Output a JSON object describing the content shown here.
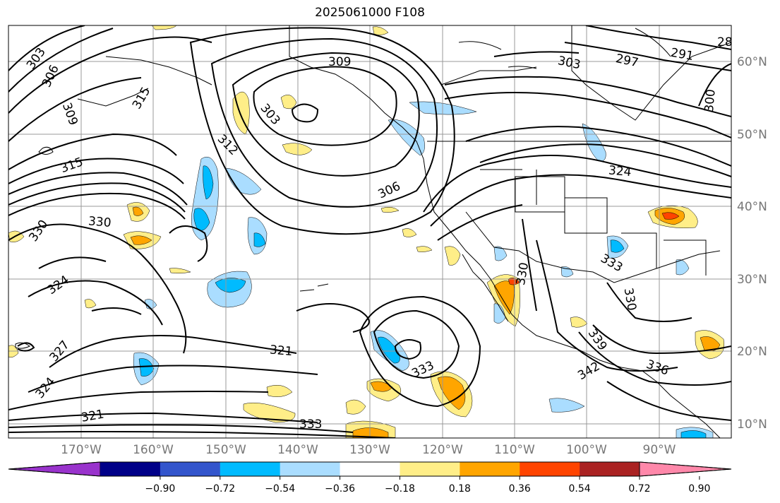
{
  "title": "2025061000 F108",
  "map": {
    "projection": "PlateCarree",
    "extent": {
      "lon": [
        -180,
        -80
      ],
      "lat": [
        8,
        65
      ]
    },
    "lat_labels": [
      "60°N",
      "50°N",
      "40°N",
      "30°N",
      "20°N",
      "10°N"
    ],
    "lon_labels": [
      "170°W",
      "160°W",
      "150°W",
      "140°W",
      "130°W",
      "120°W",
      "110°W",
      "100°W",
      "90°W"
    ],
    "contour_labels": [
      "303",
      "306",
      "309",
      "315",
      "312",
      "303",
      "309",
      "303",
      "297",
      "291",
      "28",
      "300",
      "324",
      "306",
      "315",
      "330",
      "330",
      "324",
      "327",
      "324",
      "321",
      "321",
      "333",
      "333",
      "339",
      "342",
      "336",
      "330",
      "333",
      "330"
    ]
  },
  "colorbar": {
    "colors": [
      "#9933cc",
      "#000088",
      "#3355cc",
      "#00bbff",
      "#aaddff",
      "#ffffff",
      "#ffee88",
      "#ffa500",
      "#ff4400",
      "#aa2222",
      "#ff88aa"
    ],
    "tick_labels": [
      "−0.90",
      "−0.72",
      "−0.54",
      "−0.36",
      "−0.18",
      "0.18",
      "0.36",
      "0.54",
      "0.72",
      "0.90"
    ]
  }
}
